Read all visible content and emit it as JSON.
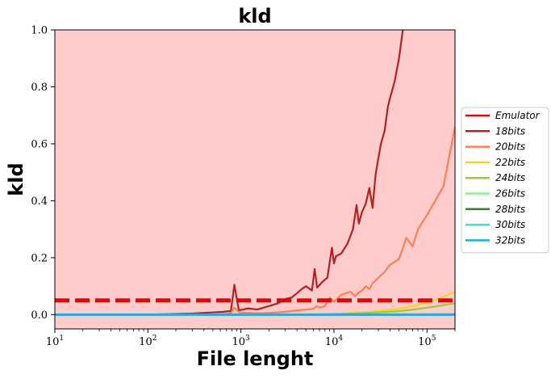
{
  "chart_data": {
    "type": "line",
    "title": "kld",
    "xlabel": "File lenght",
    "ylabel": "kld",
    "xscale": "log",
    "xlim": [
      10,
      200000
    ],
    "ylim": [
      -0.05,
      1.0
    ],
    "x_ticks": [
      {
        "value": 10,
        "base": "10",
        "exp": "1"
      },
      {
        "value": 100,
        "base": "10",
        "exp": "2"
      },
      {
        "value": 1000,
        "base": "10",
        "exp": "3"
      },
      {
        "value": 10000,
        "base": "10",
        "exp": "4"
      },
      {
        "value": 100000,
        "base": "10",
        "exp": "5"
      }
    ],
    "y_ticks": [
      {
        "value": 0.0,
        "label": "0.0"
      },
      {
        "value": 0.2,
        "label": "0.2"
      },
      {
        "value": 0.4,
        "label": "0.4"
      },
      {
        "value": 0.6,
        "label": "0.6"
      },
      {
        "value": 0.8,
        "label": "0.8"
      },
      {
        "value": 1.0,
        "label": "1.0"
      }
    ],
    "grid": false,
    "legend_position": "right",
    "shaded_region": {
      "y_from": -0.05,
      "y_to": 1.0,
      "color": "#ffcccc"
    },
    "series": [
      {
        "name": "Emulator",
        "color": "#ee0000",
        "style": "dashed",
        "x": [
          10,
          200000
        ],
        "y": [
          0.05,
          0.05
        ]
      },
      {
        "name": "18bits",
        "color": "#b22222",
        "style": "solid",
        "x": [
          10,
          100,
          300,
          500,
          650,
          720,
          780,
          850,
          950,
          1200,
          1500,
          2000,
          2500,
          3000,
          3500,
          4000,
          4500,
          5000,
          5800,
          6200,
          6600,
          7500,
          8500,
          9500,
          10000,
          10500,
          12000,
          14000,
          16000,
          17500,
          18500,
          20000,
          22000,
          24000,
          26000,
          28000,
          30000,
          32000,
          35000,
          38000,
          40000,
          45000,
          50000,
          55000,
          60000
        ],
        "y": [
          0.0,
          0.0,
          0.004,
          0.008,
          0.01,
          0.012,
          0.012,
          0.105,
          0.015,
          0.022,
          0.018,
          0.03,
          0.04,
          0.055,
          0.06,
          0.075,
          0.09,
          0.1,
          0.085,
          0.16,
          0.095,
          0.115,
          0.13,
          0.235,
          0.18,
          0.205,
          0.215,
          0.25,
          0.3,
          0.385,
          0.32,
          0.36,
          0.39,
          0.445,
          0.375,
          0.49,
          0.55,
          0.6,
          0.645,
          0.73,
          0.76,
          0.82,
          0.9,
          1.0,
          1.05
        ]
      },
      {
        "name": "20bits",
        "color": "#ff7f50",
        "style": "solid",
        "x": [
          10,
          500,
          700,
          780,
          850,
          950,
          1500,
          2000,
          3000,
          4000,
          5000,
          6000,
          6500,
          7000,
          8000,
          9000,
          10000,
          12000,
          15000,
          17000,
          18000,
          20000,
          22000,
          24000,
          26000,
          30000,
          35000,
          40000,
          50000,
          60000,
          70000,
          80000,
          100000,
          150000,
          200000
        ],
        "y": [
          0.0,
          0.0,
          0.003,
          0.005,
          0.025,
          0.008,
          0.005,
          0.006,
          0.01,
          0.015,
          0.018,
          0.02,
          0.03,
          0.025,
          0.03,
          0.06,
          0.045,
          0.07,
          0.08,
          0.065,
          0.075,
          0.085,
          0.1,
          0.09,
          0.11,
          0.13,
          0.15,
          0.175,
          0.195,
          0.27,
          0.24,
          0.3,
          0.35,
          0.45,
          0.66
        ]
      },
      {
        "name": "22bits",
        "color": "#f5d416",
        "style": "solid",
        "x": [
          10,
          3000,
          8000,
          12000,
          20000,
          30000,
          50000,
          80000,
          120000,
          200000
        ],
        "y": [
          0.0,
          0.0,
          0.002,
          0.004,
          0.008,
          0.012,
          0.02,
          0.035,
          0.05,
          0.08
        ]
      },
      {
        "name": "24bits",
        "color": "#9acd32",
        "style": "solid",
        "x": [
          10,
          5000,
          10000,
          20000,
          30000,
          50000,
          80000,
          120000,
          200000
        ],
        "y": [
          0.0,
          0.0,
          0.002,
          0.005,
          0.008,
          0.012,
          0.02,
          0.028,
          0.04
        ]
      },
      {
        "name": "26bits",
        "color": "#90ee90",
        "style": "solid",
        "x": [
          10,
          10000,
          50000,
          100000,
          200000
        ],
        "y": [
          0.0,
          0.0,
          0.001,
          0.002,
          0.003
        ]
      },
      {
        "name": "28bits",
        "color": "#228b22",
        "style": "solid",
        "x": [
          10,
          200000
        ],
        "y": [
          0.0,
          0.0005
        ]
      },
      {
        "name": "30bits",
        "color": "#40e0d0",
        "style": "solid",
        "x": [
          10,
          200000
        ],
        "y": [
          0.0,
          0.0
        ]
      },
      {
        "name": "32bits",
        "color": "#1aaee6",
        "style": "solid",
        "x": [
          10,
          200000
        ],
        "y": [
          0.0,
          0.0
        ]
      }
    ]
  }
}
